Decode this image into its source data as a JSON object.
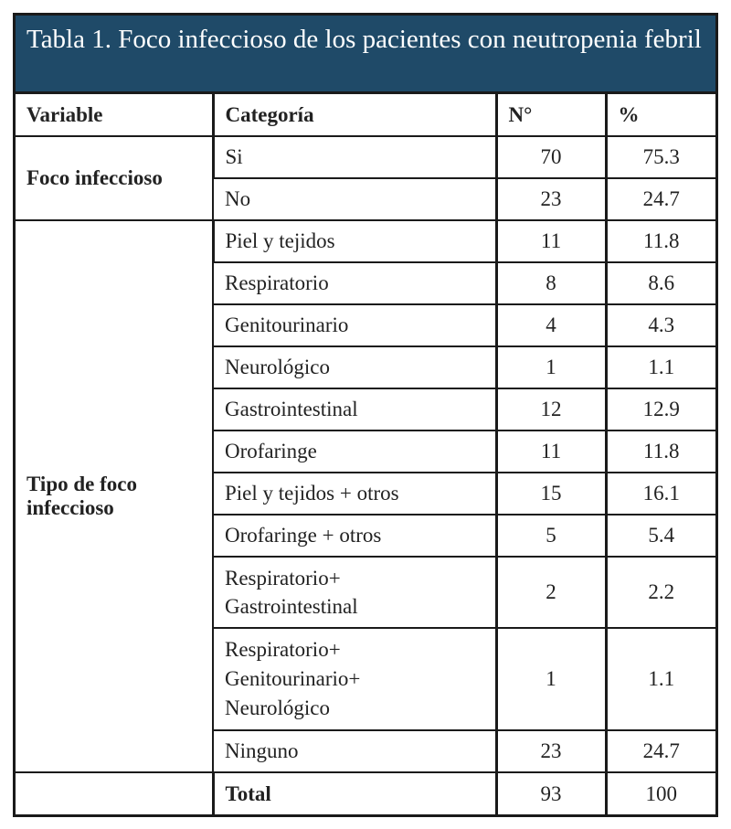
{
  "table": {
    "title": "Tabla 1. Foco infeccioso de los pacientes con neutropenia febril",
    "headers": [
      "Variable",
      "Categoría",
      "N°",
      "%"
    ],
    "groups": [
      {
        "variable": "Foco infeccioso",
        "rows": [
          {
            "categoria": "Si",
            "n": "70",
            "pct": "75.3"
          },
          {
            "categoria": "No",
            "n": "23",
            "pct": "24.7"
          }
        ]
      },
      {
        "variable_line1": "Tipo de foco",
        "variable_line2": "infeccioso",
        "rows": [
          {
            "categoria": "Piel y tejidos",
            "n": "11",
            "pct": "11.8"
          },
          {
            "categoria": "Respiratorio",
            "n": "8",
            "pct": "8.6"
          },
          {
            "categoria": "Genitourinario",
            "n": "4",
            "pct": "4.3"
          },
          {
            "categoria": "Neurológico",
            "n": "1",
            "pct": "1.1"
          },
          {
            "categoria": "Gastrointestinal",
            "n": "12",
            "pct": "12.9"
          },
          {
            "categoria": "Orofaringe",
            "n": "11",
            "pct": "11.8"
          },
          {
            "categoria": "Piel y tejidos + otros",
            "n": "15",
            "pct": "16.1"
          },
          {
            "categoria": "Orofaringe + otros",
            "n": "5",
            "pct": "5.4"
          },
          {
            "categoria_lines": [
              "Respiratorio+",
              "Gastrointestinal"
            ],
            "n": "2",
            "pct": "2.2"
          },
          {
            "categoria_lines": [
              "Respiratorio+",
              "Genitourinario+",
              "Neurológico"
            ],
            "n": "1",
            "pct": "1.1"
          },
          {
            "categoria": "Ninguno",
            "n": "23",
            "pct": "24.7"
          }
        ]
      }
    ],
    "total": {
      "label": "Total",
      "n": "93",
      "pct": "100"
    }
  }
}
